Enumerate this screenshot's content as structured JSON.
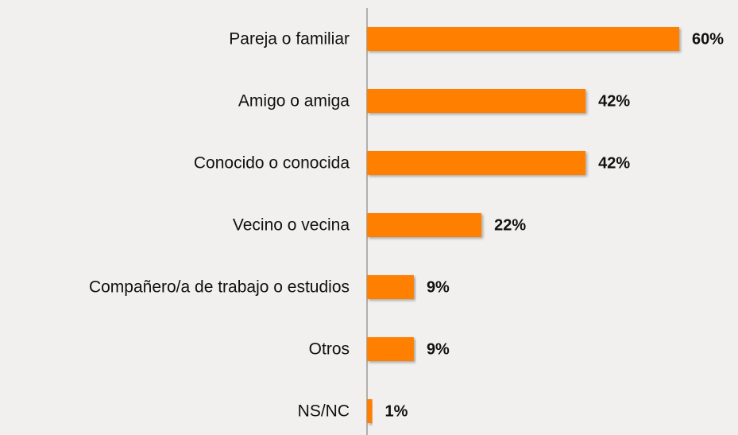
{
  "chart_data": {
    "type": "bar",
    "orientation": "horizontal",
    "categories": [
      "Pareja o familiar",
      "Amigo o amiga",
      "Conocido o conocida",
      "Vecino o vecina",
      "Compañero/a de trabajo o estudios",
      "Otros",
      "NS/NC"
    ],
    "values": [
      60,
      42,
      42,
      22,
      9,
      9,
      1
    ],
    "value_labels": [
      "60%",
      "42%",
      "42%",
      "22%",
      "9%",
      "9%",
      "1%"
    ],
    "color": "#ff8000"
  }
}
